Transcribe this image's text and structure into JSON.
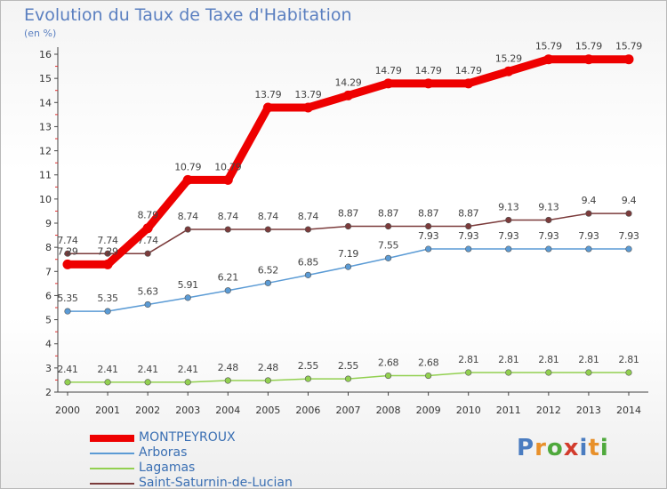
{
  "title": "Evolution du Taux de Taxe d'Habitation",
  "subtitle": "(en %)",
  "logo": {
    "letters": [
      "P",
      "r",
      "o",
      "x",
      "i",
      "t",
      "i"
    ],
    "colors": [
      "#4a7cc0",
      "#e8902a",
      "#4fa93c",
      "#d23b2c",
      "#4a7cc0",
      "#e8902a",
      "#4fa93c"
    ]
  },
  "chart_data": {
    "type": "line",
    "title": "Evolution du Taux de Taxe d'Habitation",
    "ylabel": "(en %)",
    "xlabel": "",
    "x": [
      "2000",
      "2001",
      "2002",
      "2003",
      "2004",
      "2005",
      "2006",
      "2007",
      "2008",
      "2009",
      "2010",
      "2011",
      "2012",
      "2013",
      "2014"
    ],
    "yticks": [
      "2",
      "3",
      "4",
      "5",
      "6",
      "7",
      "8",
      "9",
      "10",
      "11",
      "12",
      "13",
      "14",
      "15",
      "16"
    ],
    "ylim": [
      2,
      16
    ],
    "grid": false,
    "legend_position": "bottom-left",
    "series": [
      {
        "name": "MONTPEYROUX",
        "color": "#ee0000",
        "style": "thick",
        "values": [
          7.29,
          7.29,
          8.79,
          10.79,
          10.79,
          13.79,
          13.79,
          14.29,
          14.79,
          14.79,
          14.79,
          15.29,
          15.79,
          15.79,
          15.79
        ],
        "labels": [
          "7.29",
          "7.29",
          "8.79",
          "10.79",
          "10.79",
          "13.79",
          "13.79",
          "14.29",
          "14.79",
          "14.79",
          "14.79",
          "15.29",
          "15.79",
          "15.79",
          "15.79"
        ]
      },
      {
        "name": "Arboras",
        "color": "#5b9bd5",
        "style": "thin",
        "values": [
          5.35,
          5.35,
          5.63,
          5.91,
          6.21,
          6.52,
          6.85,
          7.19,
          7.55,
          7.93,
          7.93,
          7.93,
          7.93,
          7.93,
          7.93
        ],
        "labels": [
          "5.35",
          "5.35",
          "5.63",
          "5.91",
          "6.21",
          "6.52",
          "6.85",
          "7.19",
          "7.55",
          "7.93",
          "7.93",
          "7.93",
          "7.93",
          "7.93",
          "7.93"
        ]
      },
      {
        "name": "Lagamas",
        "color": "#92d050",
        "style": "thin",
        "values": [
          2.41,
          2.41,
          2.41,
          2.41,
          2.48,
          2.48,
          2.55,
          2.55,
          2.68,
          2.68,
          2.81,
          2.81,
          2.81,
          2.81,
          2.81
        ],
        "labels": [
          "2.41",
          "2.41",
          "2.41",
          "2.41",
          "2.48",
          "2.48",
          "2.55",
          "2.55",
          "2.68",
          "2.68",
          "2.81",
          "2.81",
          "2.81",
          "2.81",
          "2.81"
        ]
      },
      {
        "name": "Saint-Saturnin-de-Lucian",
        "color": "#7b3b3b",
        "style": "thin",
        "values": [
          7.74,
          7.74,
          7.74,
          8.74,
          8.74,
          8.74,
          8.74,
          8.87,
          8.87,
          8.87,
          8.87,
          9.13,
          9.13,
          9.4,
          9.4
        ],
        "labels": [
          "7.74",
          "7.74",
          "7.74",
          "8.74",
          "8.74",
          "8.74",
          "8.74",
          "8.87",
          "8.87",
          "8.87",
          "8.87",
          "9.13",
          "9.13",
          "9.4",
          "9.4"
        ]
      }
    ]
  }
}
